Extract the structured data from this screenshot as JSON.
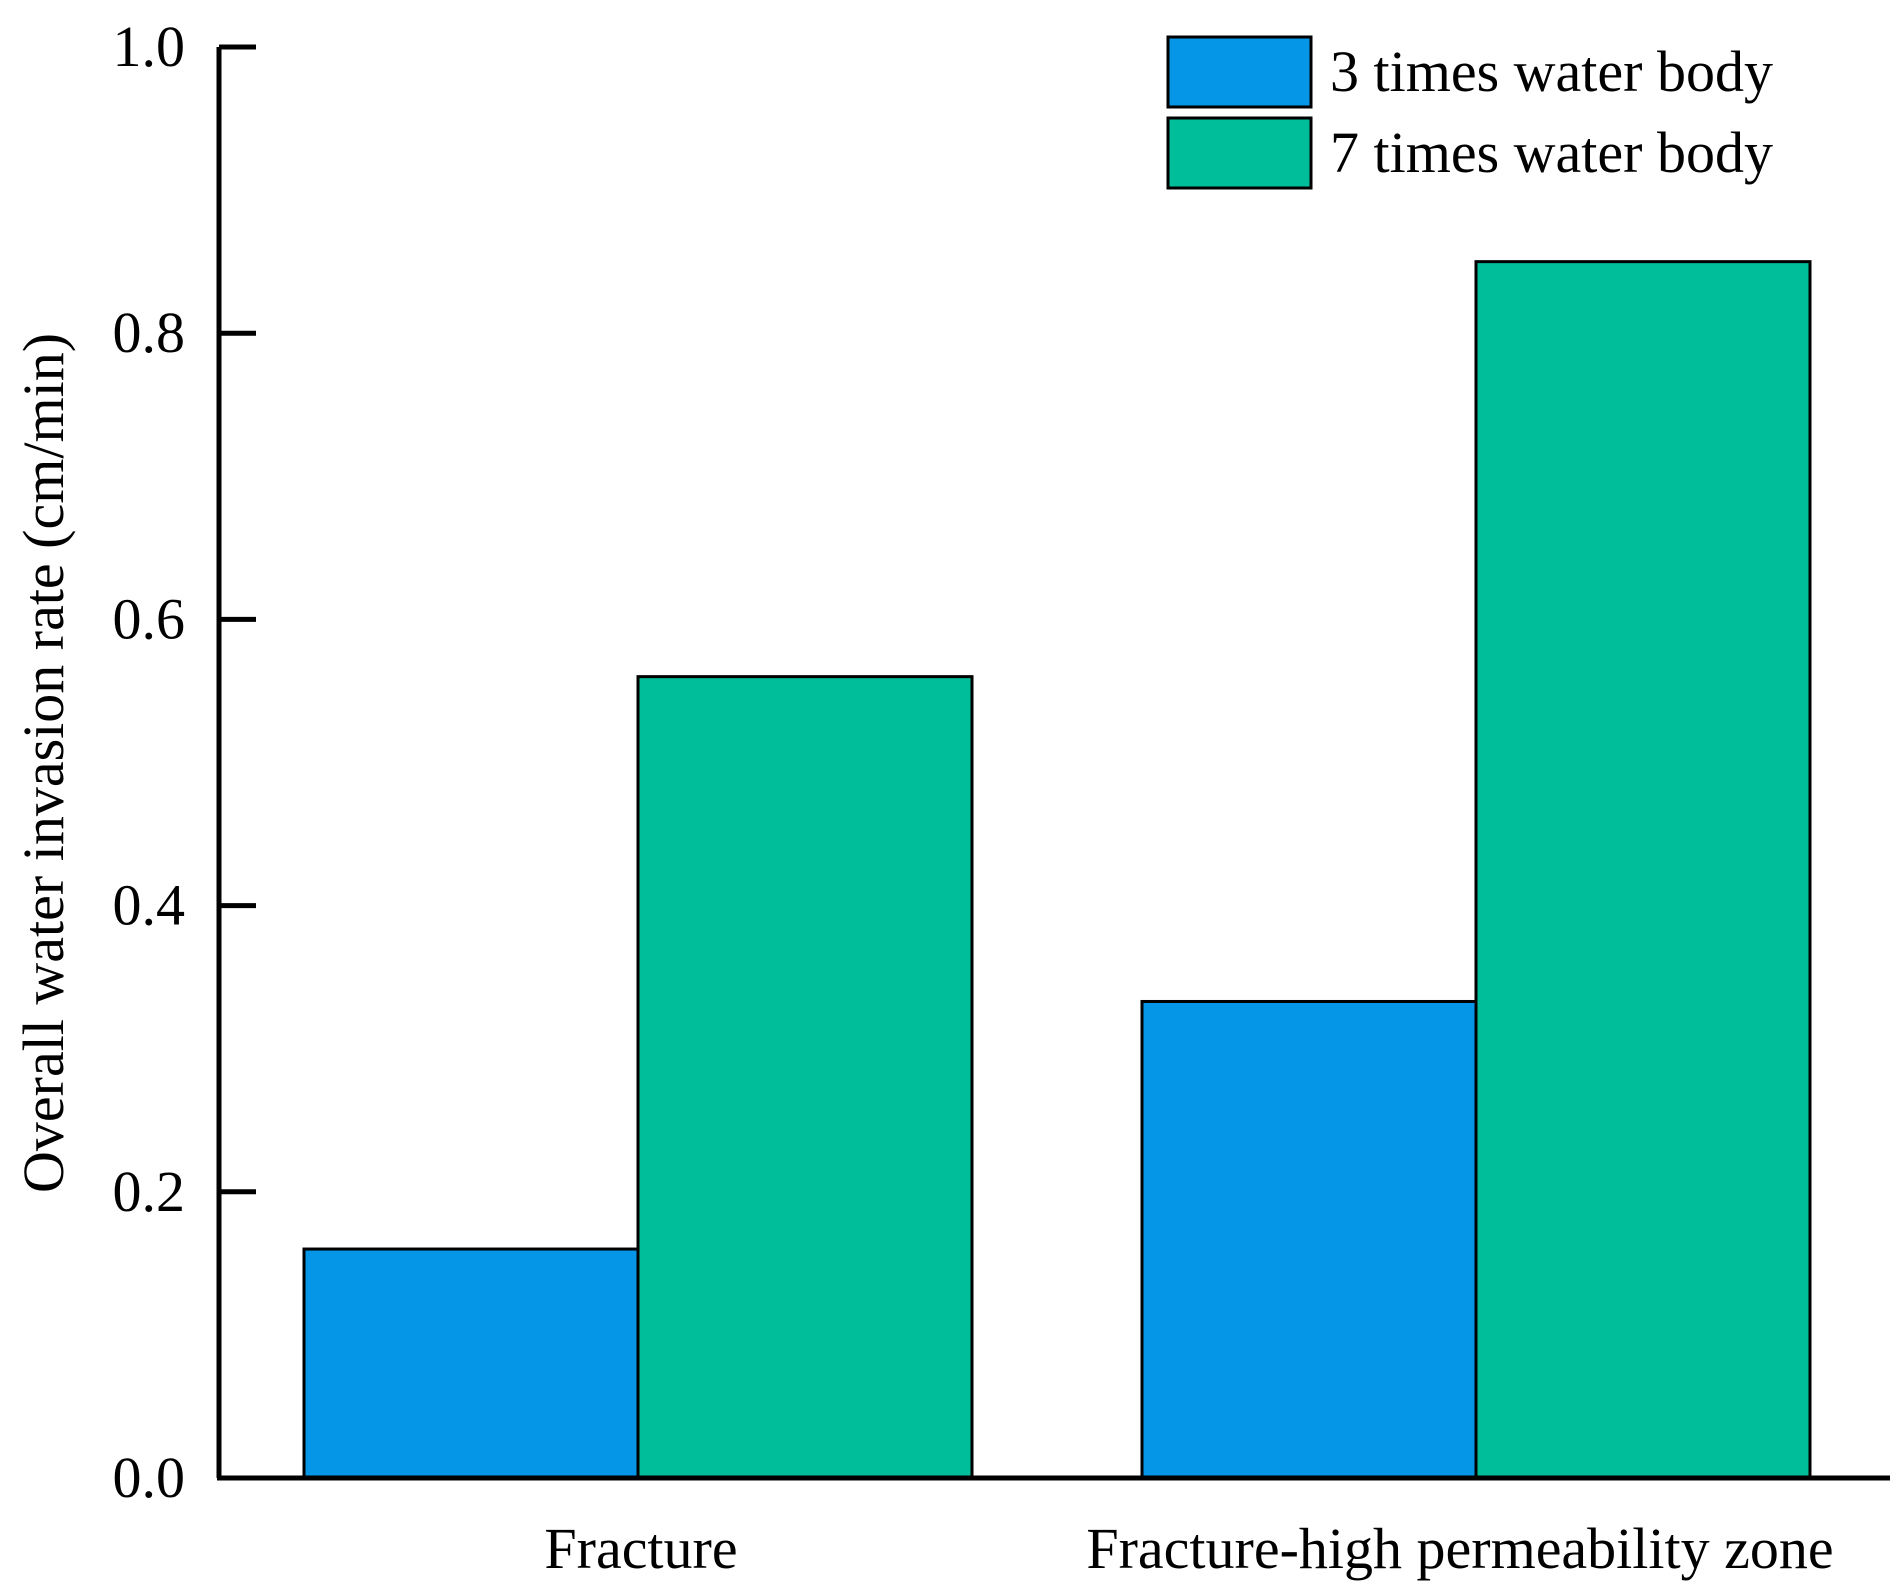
{
  "chart_data": {
    "type": "bar",
    "title": "",
    "xlabel": "",
    "ylabel": "Overall water invasion rate (cm/min)",
    "categories": [
      "Fracture",
      "Fracture-high permeability zone"
    ],
    "series": [
      {
        "name": "3 times water body",
        "values": [
          0.16,
          0.333
        ],
        "color": "#0596E8"
      },
      {
        "name": "7 times water body",
        "values": [
          0.56,
          0.85
        ],
        "color": "#00BE9A"
      }
    ],
    "ylim": [
      0,
      1.0
    ],
    "yticks": [
      "0.0",
      "0.2",
      "0.4",
      "0.6",
      "0.8",
      "1.0"
    ],
    "legend_position": "top-right",
    "grid": false
  }
}
